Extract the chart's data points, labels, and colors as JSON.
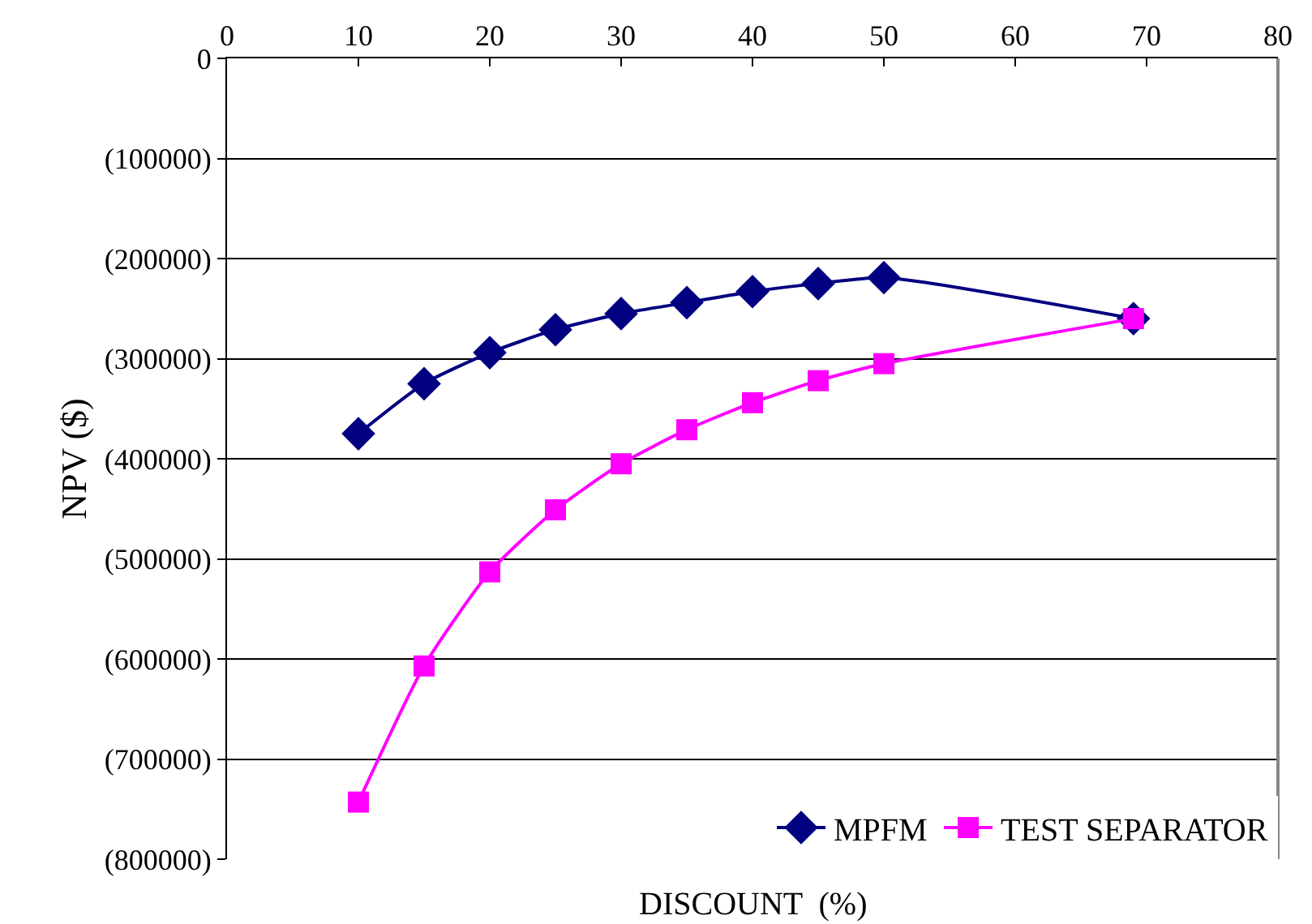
{
  "chart_data": {
    "type": "line",
    "xlabel": "DISCOUNT  (%)",
    "ylabel": "NPV ($)",
    "xlim": [
      0,
      80
    ],
    "xticks": [
      0,
      10,
      20,
      30,
      40,
      50,
      60,
      70,
      80
    ],
    "ylim": [
      -800000,
      0
    ],
    "yticks": [
      {
        "value": 0,
        "label": "0"
      },
      {
        "value": -100000,
        "label": "(100000)"
      },
      {
        "value": -200000,
        "label": "(200000)"
      },
      {
        "value": -300000,
        "label": "(300000)"
      },
      {
        "value": -400000,
        "label": "(400000)"
      },
      {
        "value": -500000,
        "label": "(500000)"
      },
      {
        "value": -600000,
        "label": "(600000)"
      },
      {
        "value": -700000,
        "label": "(700000)"
      },
      {
        "value": -800000,
        "label": "(800000)"
      }
    ],
    "grid": "y",
    "legend": "bottom right",
    "series": [
      {
        "name": "MPFM",
        "color": "#000080",
        "marker": "diamond",
        "x": [
          10,
          15,
          20,
          25,
          30,
          35,
          40,
          45,
          50,
          69
        ],
        "values": [
          -375000,
          -325000,
          -294000,
          -271000,
          -255000,
          -244000,
          -233000,
          -225000,
          -219000,
          -260000
        ]
      },
      {
        "name": "TEST SEPARATOR",
        "color": "#ff00ff",
        "marker": "square",
        "x": [
          10,
          15,
          20,
          25,
          30,
          35,
          40,
          45,
          50,
          69
        ],
        "values": [
          -743000,
          -607000,
          -513000,
          -451000,
          -405000,
          -371000,
          -344000,
          -322000,
          -305000,
          -260000
        ]
      }
    ]
  }
}
